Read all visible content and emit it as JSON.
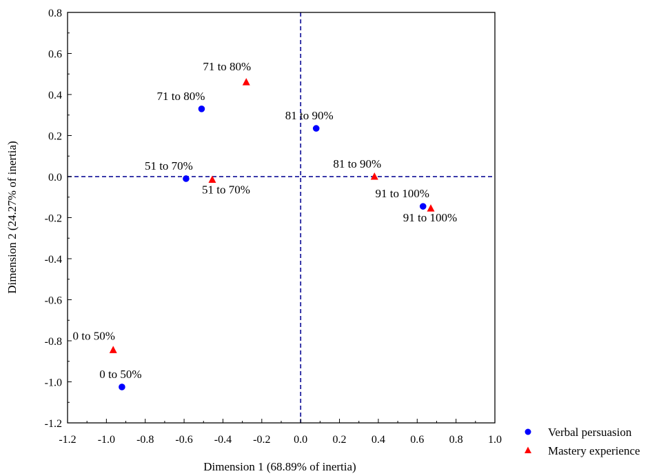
{
  "chart_data": {
    "type": "scatter",
    "title": "",
    "xlabel": "Dimension 1 (68.89% of inertia)",
    "ylabel": "Dimension 2 (24.27% of inertia)",
    "xlim": [
      -1.2,
      1.0
    ],
    "ylim": [
      -1.2,
      0.8
    ],
    "xticks": [
      "-1.2",
      "-1.0",
      "-0.8",
      "-0.6",
      "-0.4",
      "-0.2",
      "0.0",
      "0.2",
      "0.4",
      "0.6",
      "0.8",
      "1.0"
    ],
    "yticks": [
      "0.8",
      "0.6",
      "0.4",
      "0.2",
      "0.0",
      "-0.2",
      "-0.4",
      "-0.6",
      "-0.8",
      "-1.0",
      "-1.2"
    ],
    "reference_lines": {
      "x": 0.0,
      "y": 0.0,
      "style": "dashed",
      "color": "#1f1f9e"
    },
    "grid": false,
    "legend_position": "bottom-right outside plot",
    "series": [
      {
        "name": "Verbal persuasion",
        "marker": "circle",
        "color": "#0000ff",
        "points": [
          {
            "label": "71 to 80%",
            "x": -0.51,
            "y": 0.33
          },
          {
            "label": "81 to 90%",
            "x": 0.08,
            "y": 0.235
          },
          {
            "label": "51 to 70%",
            "x": -0.59,
            "y": -0.01
          },
          {
            "label": "91 to 100%",
            "x": 0.63,
            "y": -0.145
          },
          {
            "label": "0 to 50%",
            "x": -0.92,
            "y": -1.025
          }
        ]
      },
      {
        "name": "Mastery experience",
        "marker": "triangle",
        "color": "#ff0000",
        "points": [
          {
            "label": "71 to 80%",
            "x": -0.28,
            "y": 0.46
          },
          {
            "label": "51 to 70%",
            "x": -0.455,
            "y": -0.015
          },
          {
            "label": "81 to 90%",
            "x": 0.38,
            "y": 0.0
          },
          {
            "label": "91 to 100%",
            "x": 0.67,
            "y": -0.155
          },
          {
            "label": "0 to 50%",
            "x": -0.965,
            "y": -0.845
          }
        ]
      }
    ]
  }
}
